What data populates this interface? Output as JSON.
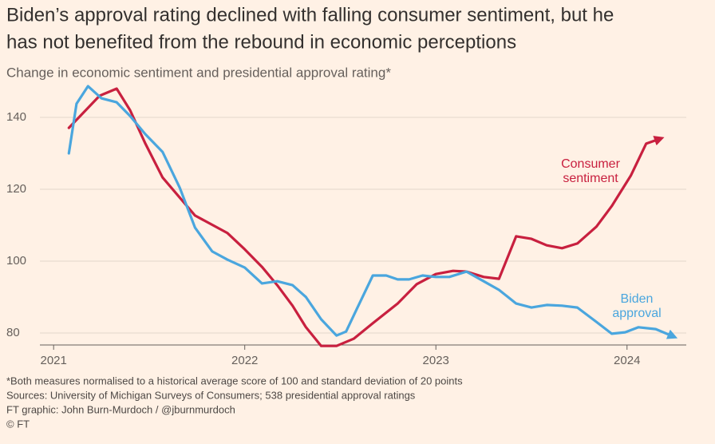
{
  "chart_data": {
    "type": "line",
    "title": [
      "Biden’s approval rating declined with falling consumer sentiment, but he",
      "has not benefited from the rebound in economic perceptions"
    ],
    "subtitle": "Change in economic sentiment and presidential approval rating*",
    "xlim": [
      2020.97,
      2024.31
    ],
    "xticks": [
      2021,
      2022,
      2023,
      2024
    ],
    "ylim": [
      76,
      150
    ],
    "yticks": [
      80,
      100,
      120,
      140
    ],
    "grid": true,
    "series": [
      {
        "name": [
          "Consumer",
          "sentiment"
        ],
        "color": "#c8203f",
        "x": [
          2021.08,
          2021.24,
          2021.33,
          2021.4,
          2021.48,
          2021.57,
          2021.74,
          2021.91,
          2022.0,
          2022.09,
          2022.17,
          2022.25,
          2022.32,
          2022.4,
          2022.48,
          2022.57,
          2022.67,
          2022.8,
          2022.9,
          2023.0,
          2023.09,
          2023.16,
          2023.25,
          2023.33,
          2023.42,
          2023.5,
          2023.58,
          2023.66,
          2023.74,
          2023.84,
          2023.92,
          2024.02,
          2024.1,
          2024.17
        ],
        "values": [
          137.1,
          146.0,
          148.0,
          142.0,
          132.7,
          123.3,
          112.7,
          107.8,
          103.3,
          98.4,
          93.3,
          87.6,
          81.6,
          76.4,
          76.4,
          78.4,
          82.7,
          88.2,
          93.6,
          96.4,
          97.3,
          97.1,
          95.6,
          95.1,
          106.9,
          106.2,
          104.4,
          103.6,
          104.9,
          109.6,
          115.3,
          123.8,
          132.7,
          134.0
        ]
      },
      {
        "name": [
          "Biden",
          "approval"
        ],
        "color": "#4aa6de",
        "x": [
          2021.08,
          2021.12,
          2021.18,
          2021.25,
          2021.33,
          2021.4,
          2021.48,
          2021.57,
          2021.66,
          2021.74,
          2021.83,
          2021.91,
          2022.0,
          2022.09,
          2022.17,
          2022.25,
          2022.32,
          2022.4,
          2022.48,
          2022.53,
          2022.59,
          2022.67,
          2022.74,
          2022.8,
          2022.86,
          2022.93,
          2023.0,
          2023.07,
          2023.16,
          2023.25,
          2023.33,
          2023.42,
          2023.5,
          2023.58,
          2023.66,
          2023.74,
          2023.84,
          2023.92,
          2023.99,
          2024.06,
          2024.15,
          2024.24
        ],
        "values": [
          130.0,
          143.8,
          148.7,
          145.3,
          144.2,
          140.4,
          135.3,
          130.4,
          120.4,
          109.3,
          102.7,
          100.4,
          98.2,
          93.8,
          94.4,
          93.3,
          90.0,
          83.8,
          79.3,
          80.4,
          87.1,
          96.0,
          96.0,
          94.9,
          94.9,
          96.0,
          95.6,
          95.6,
          97.1,
          94.4,
          92.0,
          88.2,
          87.1,
          87.8,
          87.6,
          87.1,
          83.1,
          79.8,
          80.2,
          81.6,
          81.1,
          79.1
        ]
      }
    ],
    "footnotes": [
      "*Both measures normalised to a historical average score of 100 and standard deviation of 20 points",
      "Sources: University of Michigan Surveys of Consumers; 538 presidential approval ratings",
      "FT graphic: John Burn-Murdoch / @jburnmurdoch",
      "© FT"
    ]
  }
}
